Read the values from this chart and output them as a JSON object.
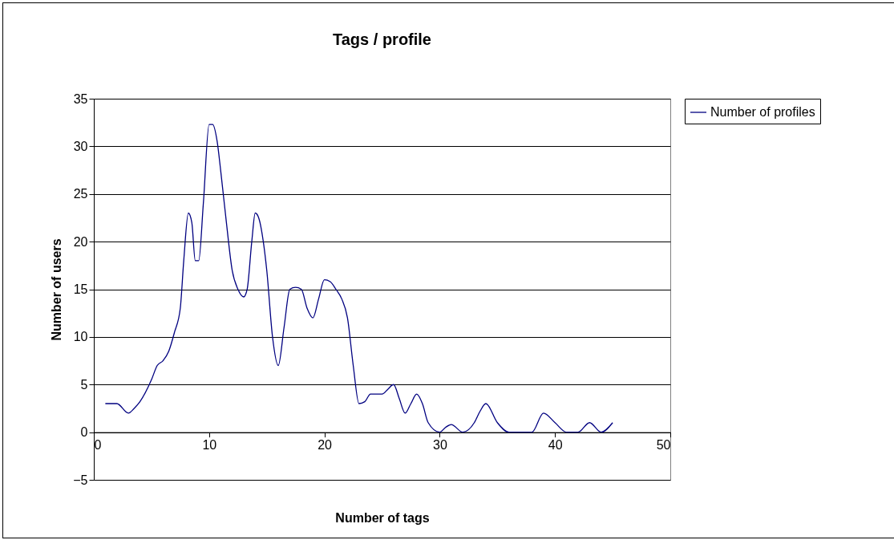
{
  "chart_data": {
    "type": "line",
    "title": "Tags / profile",
    "xlabel": "Number of tags",
    "ylabel": "Number of users",
    "x": [
      1,
      2,
      3,
      3.5,
      4,
      5,
      5.5,
      6,
      6.5,
      7,
      7.5,
      7.8,
      8.2,
      8.5,
      8.8,
      9.1,
      9.5,
      10,
      10.3,
      10.7,
      11,
      11.5,
      12,
      12.5,
      13,
      13.3,
      13.7,
      14,
      14.3,
      14.7,
      15,
      15.5,
      16,
      16.5,
      17,
      17.5,
      18,
      18.5,
      19,
      19.5,
      20,
      20.5,
      21,
      21.5,
      22,
      22.5,
      23,
      23.5,
      24,
      25,
      25.5,
      26,
      26.5,
      27,
      27.5,
      28,
      28.5,
      29,
      30,
      30.5,
      31,
      32,
      33,
      33.5,
      34,
      35,
      36,
      37,
      38,
      39,
      40,
      41,
      42,
      43,
      44,
      45
    ],
    "series": [
      {
        "name": "Number of profiles",
        "color": "#000080",
        "values": [
          3,
          3,
          2,
          2.5,
          3.2,
          5.5,
          7,
          7.5,
          8.5,
          10.5,
          13,
          18,
          23,
          22,
          18,
          18,
          24,
          32.3,
          32.3,
          30.5,
          27.5,
          22,
          17,
          15,
          14.2,
          15,
          20,
          23,
          22.5,
          20,
          17,
          10,
          7,
          11,
          15,
          15.2,
          15,
          13,
          12,
          14,
          16,
          15.8,
          15,
          14,
          12,
          7,
          3,
          3.2,
          4,
          4,
          4.5,
          5,
          3.5,
          2,
          3,
          4,
          3,
          1,
          0,
          0.5,
          0.8,
          0,
          1,
          2.2,
          3,
          1,
          0,
          0,
          0,
          2,
          1,
          0,
          0,
          1,
          0,
          1
        ]
      }
    ],
    "xlim": [
      0,
      50
    ],
    "xticks": [
      0,
      10,
      20,
      30,
      40,
      50
    ],
    "ylim": [
      -5,
      35
    ],
    "yticks": [
      -5,
      0,
      5,
      10,
      15,
      20,
      25,
      30,
      35
    ],
    "grid": "y",
    "legend": "right",
    "marker": "none",
    "line_style": "solid"
  }
}
